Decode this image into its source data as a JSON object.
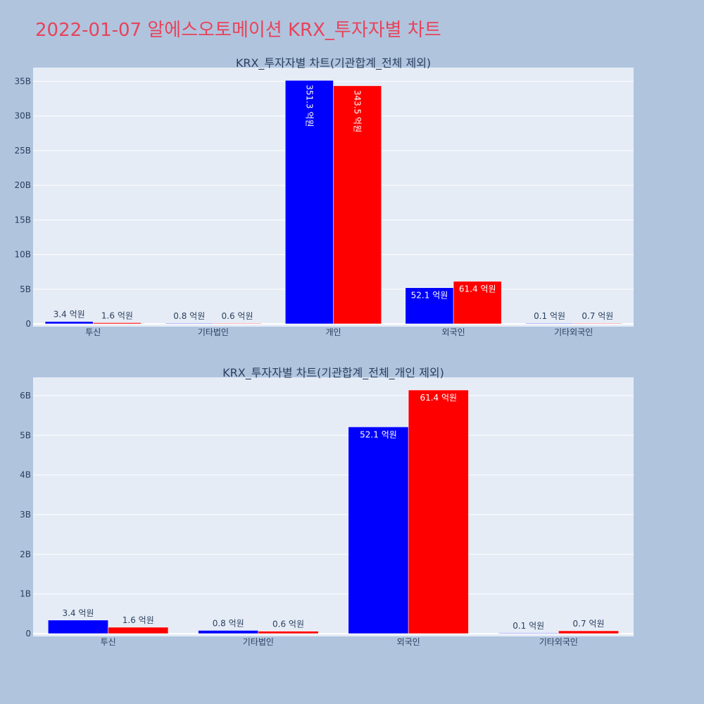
{
  "page_title": "2022-01-07 알에스오토메이션 KRX_투자자별 차트",
  "colors": {
    "buy": "#0000ff",
    "sell": "#ff0000",
    "plot_bg": "#e5ecf6",
    "page_bg": "#b0c4de",
    "title": "#e8435a"
  },
  "chart_data": [
    {
      "type": "bar",
      "title": "KRX_투자자별 차트(기관합계_전체 제외)",
      "categories": [
        "투신",
        "기타법인",
        "개인",
        "외국인",
        "기타외국인"
      ],
      "series": [
        {
          "values": [
            340000000,
            80000000,
            35130000000,
            5210000000,
            10000000
          ],
          "labels": [
            "3.4 억원",
            "0.8 억원",
            "351.3 억원",
            "52.1 억원",
            "0.1 억원"
          ]
        },
        {
          "values": [
            160000000,
            60000000,
            34350000000,
            6140000000,
            70000000
          ],
          "labels": [
            "1.6 억원",
            "0.6 억원",
            "343.5 억원",
            "61.4 억원",
            "0.7 억원"
          ]
        }
      ],
      "yticks": [
        0,
        5000000000,
        10000000000,
        15000000000,
        20000000000,
        25000000000,
        30000000000,
        35000000000
      ],
      "ytick_labels": [
        "0",
        "5B",
        "10B",
        "15B",
        "20B",
        "25B",
        "30B",
        "35B"
      ],
      "ylim": [
        0,
        36980000000
      ],
      "grid": true
    },
    {
      "type": "bar",
      "title": "KRX_투자자별 차트(기관합계_전체_개인 제외)",
      "categories": [
        "투신",
        "기타법인",
        "외국인",
        "기타외국인"
      ],
      "series": [
        {
          "values": [
            340000000,
            80000000,
            5210000000,
            10000000
          ],
          "labels": [
            "3.4 억원",
            "0.8 억원",
            "52.1 억원",
            "0.1 억원"
          ]
        },
        {
          "values": [
            160000000,
            60000000,
            6140000000,
            70000000
          ],
          "labels": [
            "1.6 억원",
            "0.6 억원",
            "61.4 억원",
            "0.7 억원"
          ]
        }
      ],
      "yticks": [
        0,
        1000000000,
        2000000000,
        3000000000,
        4000000000,
        5000000000,
        6000000000
      ],
      "ytick_labels": [
        "0",
        "1B",
        "2B",
        "3B",
        "4B",
        "5B",
        "6B"
      ],
      "ylim": [
        0,
        6460000000
      ],
      "grid": true
    }
  ]
}
